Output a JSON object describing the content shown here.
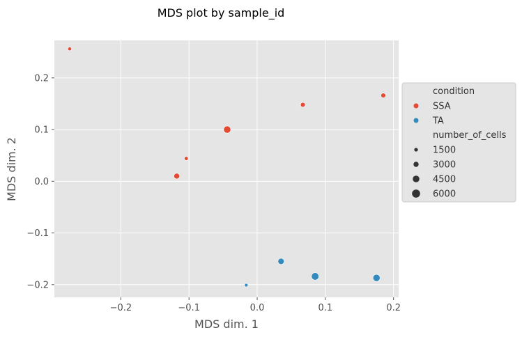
{
  "chart_data": {
    "type": "scatter",
    "title": "MDS plot by sample_id",
    "xlabel": "MDS dim. 1",
    "ylabel": "MDS dim. 2",
    "xlim": [
      -0.2975,
      0.2075
    ],
    "ylim": [
      -0.2245,
      0.2725
    ],
    "xticks": [
      -0.2,
      -0.1,
      0.0,
      0.1,
      0.2
    ],
    "xtick_labels": [
      "−0.2",
      "−0.1",
      "0.0",
      "0.1",
      "0.2"
    ],
    "yticks": [
      -0.2,
      -0.1,
      0.0,
      0.1,
      0.2
    ],
    "ytick_labels": [
      "−0.2",
      "−0.1",
      "0.0",
      "0.1",
      "0.2"
    ],
    "grid": true,
    "legend_position": "right",
    "series": [
      {
        "name": "SSA",
        "color": "#E24A33",
        "points": [
          {
            "x": -0.275,
            "y": 0.256,
            "number_of_cells": 1500
          },
          {
            "x": 0.067,
            "y": 0.148,
            "number_of_cells": 2500
          },
          {
            "x": 0.185,
            "y": 0.166,
            "number_of_cells": 2500
          },
          {
            "x": -0.044,
            "y": 0.1,
            "number_of_cells": 5000
          },
          {
            "x": -0.104,
            "y": 0.044,
            "number_of_cells": 1700
          },
          {
            "x": -0.118,
            "y": 0.01,
            "number_of_cells": 3500
          }
        ]
      },
      {
        "name": "TA",
        "color": "#348ABD",
        "points": [
          {
            "x": -0.016,
            "y": -0.201,
            "number_of_cells": 1200
          },
          {
            "x": 0.035,
            "y": -0.155,
            "number_of_cells": 4000
          },
          {
            "x": 0.085,
            "y": -0.184,
            "number_of_cells": 5300
          },
          {
            "x": 0.175,
            "y": -0.187,
            "number_of_cells": 5000
          }
        ]
      }
    ],
    "legend": {
      "hue_title": "condition",
      "hue_entries": [
        {
          "label": "SSA",
          "color": "#E24A33"
        },
        {
          "label": "TA",
          "color": "#348ABD"
        }
      ],
      "size_title": "number_of_cells",
      "size_entries": [
        {
          "label": "1500",
          "value": 1500
        },
        {
          "label": "3000",
          "value": 3000
        },
        {
          "label": "4500",
          "value": 4500
        },
        {
          "label": "6000",
          "value": 6000
        }
      ]
    },
    "size_scale": {
      "min_value": 1000,
      "max_value": 6000
    },
    "colors": {
      "panel_background": "#E5E5E5",
      "grid": "#FFFFFF",
      "legend_background": "#E5E5E5",
      "legend_border": "#CCCCCC",
      "legend_marker": "#333333"
    }
  }
}
